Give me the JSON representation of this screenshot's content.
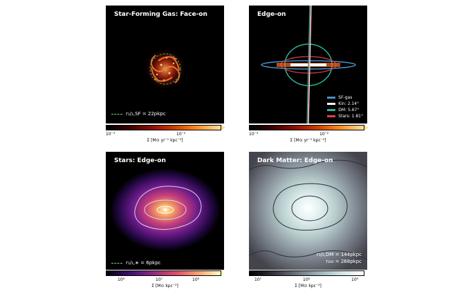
{
  "panels": {
    "p1": {
      "title": "Star-Forming Gas: Face-on",
      "note": "r₁/₂,SF = 22pkpc"
    },
    "p2": {
      "title": "Edge-on",
      "legend": [
        {
          "label": "SF-gas",
          "color": "#4a90c8"
        },
        {
          "label": "Kin: 2.14°",
          "color": "#ffffff"
        },
        {
          "label": "DM: 5.67°",
          "color": "#2bb39a"
        },
        {
          "label": "Stars: 1.81°",
          "color": "#e0404a"
        }
      ]
    },
    "p3": {
      "title": "Stars: Edge-on",
      "note": "r₁/₂,∗ = 6pkpc"
    },
    "p4": {
      "title": "Dark Matter: Edge-on",
      "note1": "r₁/₂,DM = 144pkpc",
      "note2": "r₂₀₀ = 268pkpc"
    }
  },
  "colorbars": {
    "c1": {
      "ticks": [
        "10⁻³",
        "10⁻²"
      ],
      "label": "Σ [M⊙ yr⁻¹ kpc⁻²]"
    },
    "c2": {
      "ticks": [
        "10⁻³",
        "10⁻²"
      ],
      "label": "Σ [M⊙ yr⁻¹ kpc⁻²]"
    },
    "c3": {
      "ticks": [
        "10⁶",
        "10⁷",
        "10⁸"
      ],
      "label": "Σ [M⊙ kpc⁻²]"
    },
    "c4": {
      "ticks": [
        "10⁷",
        "10⁸",
        "10⁹"
      ],
      "label": "Σ [M⊙ kpc⁻²]"
    }
  }
}
